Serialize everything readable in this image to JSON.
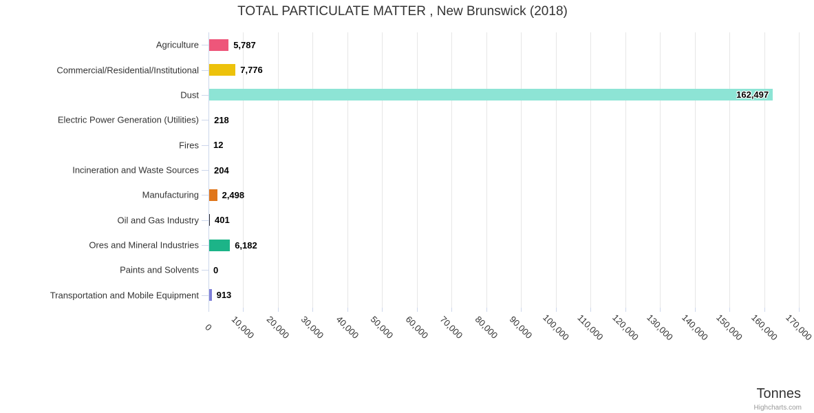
{
  "chart_data": {
    "type": "bar",
    "orientation": "horizontal",
    "title": "TOTAL PARTICULATE MATTER , New Brunswick (2018)",
    "categories": [
      "Agriculture",
      "Commercial/Residential/Institutional",
      "Dust",
      "Electric Power Generation (Utilities)",
      "Fires",
      "Incineration and Waste Sources",
      "Manufacturing",
      "Oil and Gas Industry",
      "Ores and Mineral Industries",
      "Paints and Solvents",
      "Transportation and Mobile Equipment"
    ],
    "values": [
      5787,
      7776,
      162497,
      218,
      12,
      204,
      2498,
      401,
      6182,
      0,
      913
    ],
    "value_labels": [
      "5,787",
      "7,776",
      "162,497",
      "218",
      "12",
      "204",
      "2,498",
      "401",
      "6,182",
      "0",
      "913"
    ],
    "bar_colors": [
      "#EE567A",
      "#EDC20B",
      "#8DE4D5",
      "#6F6F6F",
      "#9A9A9A",
      "#7D7D7D",
      "#E0761A",
      "#2B2B33",
      "#1CB488",
      "#BBBBBB",
      "#7E7FD8"
    ],
    "xlabel": "Tonnes",
    "ylabel": "",
    "xlim": [
      0,
      170000
    ],
    "tick_interval": 10000,
    "x_ticks": [
      "0",
      "10,000",
      "20,000",
      "30,000",
      "40,000",
      "50,000",
      "60,000",
      "70,000",
      "80,000",
      "90,000",
      "100,000",
      "110,000",
      "120,000",
      "130,000",
      "140,000",
      "150,000",
      "160,000",
      "170,000"
    ],
    "grid": true,
    "legend": false,
    "colors": {
      "grid": "#E6E6E6",
      "axis_line": "#CCD6EB",
      "title_text": "#333333",
      "label_text": "#333333",
      "value_text": "#000000",
      "credits_text": "#999999"
    }
  },
  "credits": {
    "label": "Highcharts.com"
  }
}
